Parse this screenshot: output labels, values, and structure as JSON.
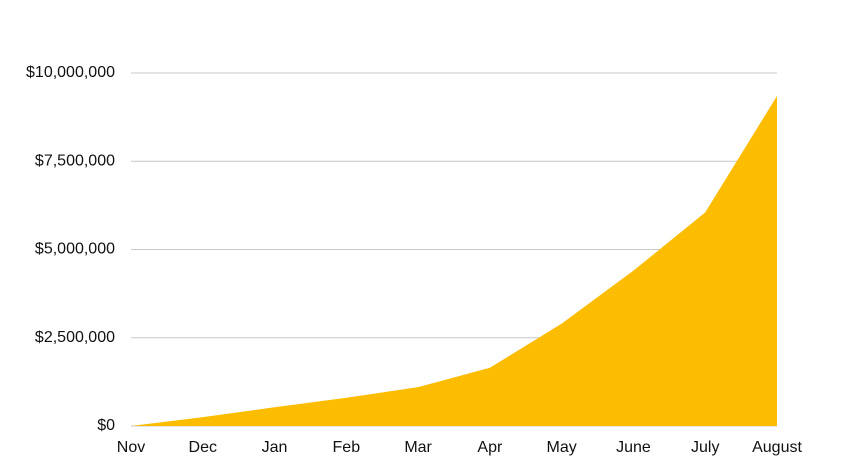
{
  "chart_data": {
    "type": "area",
    "categories": [
      "Nov",
      "Dec",
      "Jan",
      "Feb",
      "Mar",
      "Apr",
      "May",
      "June",
      "July",
      "August"
    ],
    "values": [
      0,
      250000,
      530000,
      800000,
      1100000,
      1650000,
      2900000,
      4400000,
      6050000,
      9350000
    ],
    "color": "#fcbc00",
    "ylim": [
      0,
      10000000
    ],
    "yticks": [
      {
        "value": 0,
        "label": "$0"
      },
      {
        "value": 2500000,
        "label": "$2,500,000"
      },
      {
        "value": 5000000,
        "label": "$5,000,000"
      },
      {
        "value": 7500000,
        "label": "$7,500,000"
      },
      {
        "value": 10000000,
        "label": "$10,000,000"
      }
    ],
    "grid": true
  }
}
